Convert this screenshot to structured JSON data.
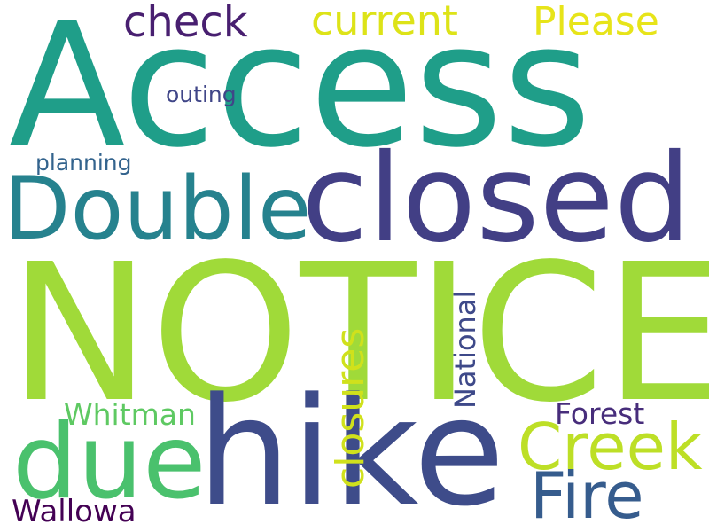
{
  "words": [
    {
      "key": "access",
      "text": "Access",
      "color": "#1f9e89"
    },
    {
      "key": "notice",
      "text": "NOTICE",
      "color": "#a0da39"
    },
    {
      "key": "closed",
      "text": "closed",
      "color": "#423f85"
    },
    {
      "key": "double",
      "text": "Double",
      "color": "#26828e"
    },
    {
      "key": "hike",
      "text": "hike",
      "color": "#3e4c8a"
    },
    {
      "key": "due",
      "text": "due",
      "color": "#4ac16d"
    },
    {
      "key": "creek",
      "text": "Creek",
      "color": "#bddf26"
    },
    {
      "key": "fire",
      "text": "Fire",
      "color": "#365c8d"
    },
    {
      "key": "check",
      "text": "check",
      "color": "#481f70"
    },
    {
      "key": "current",
      "text": "current",
      "color": "#dde318"
    },
    {
      "key": "please",
      "text": "Please",
      "color": "#e7e419"
    },
    {
      "key": "closures",
      "text": "closures",
      "color": "#d0e11c"
    },
    {
      "key": "national",
      "text": "National",
      "color": "#3e4989"
    },
    {
      "key": "whitman",
      "text": "Whitman",
      "color": "#5ec962"
    },
    {
      "key": "forest",
      "text": "Forest",
      "color": "#472d7b"
    },
    {
      "key": "wallowa",
      "text": "Wallowa",
      "color": "#440154"
    },
    {
      "key": "outing",
      "text": "outing",
      "color": "#404688"
    },
    {
      "key": "planning",
      "text": "planning",
      "color": "#33638d"
    }
  ]
}
